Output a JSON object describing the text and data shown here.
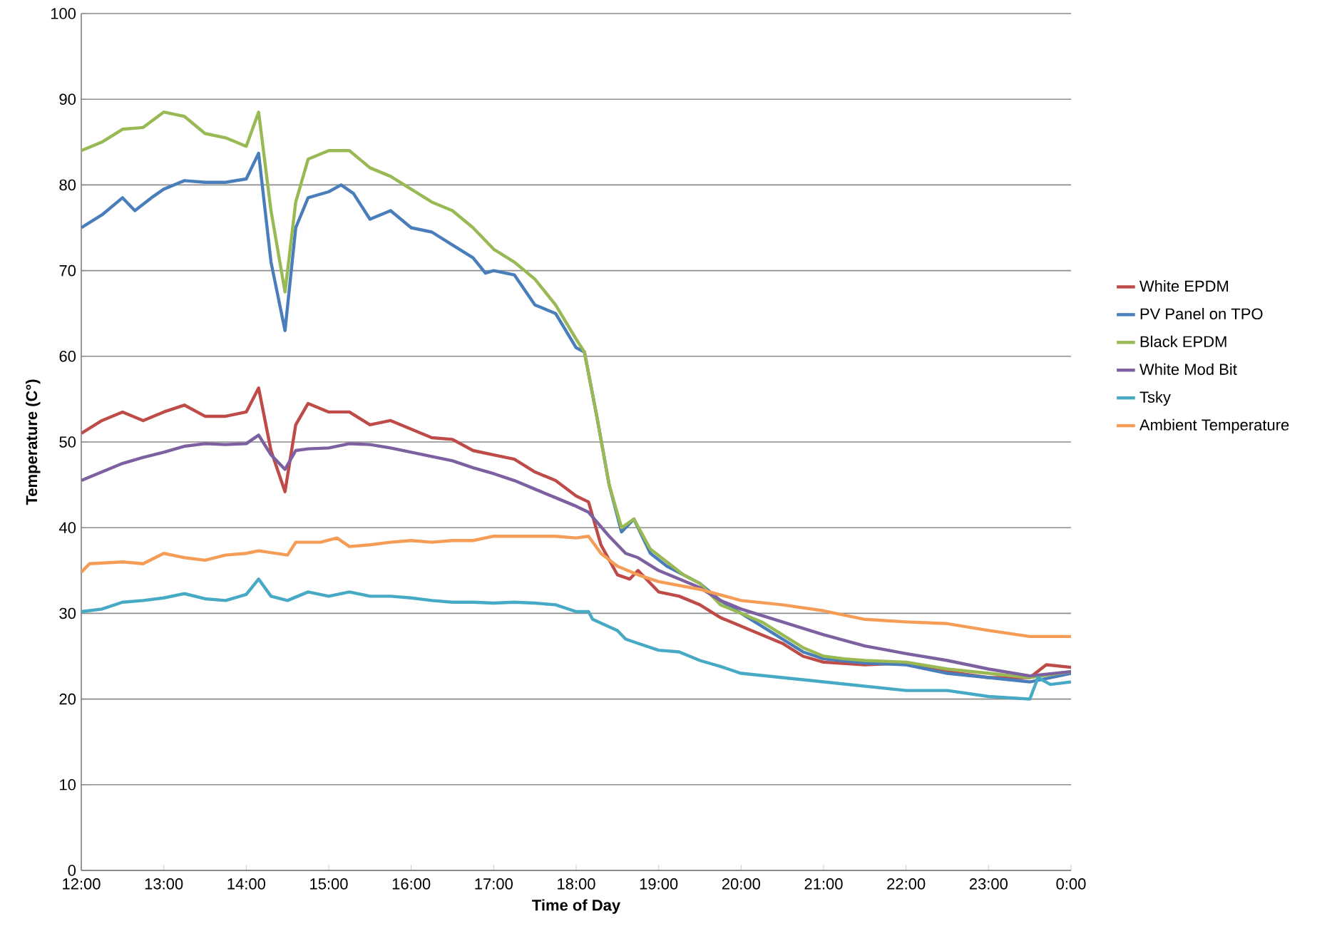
{
  "chart_data": {
    "type": "line",
    "xlabel": "Time of Day",
    "ylabel": "Temperature (C°)",
    "xlim": [
      12,
      24
    ],
    "ylim": [
      0,
      100
    ],
    "xticks": [
      {
        "value": 12,
        "label": "12:00"
      },
      {
        "value": 13,
        "label": "13:00"
      },
      {
        "value": 14,
        "label": "14:00"
      },
      {
        "value": 15,
        "label": "15:00"
      },
      {
        "value": 16,
        "label": "16:00"
      },
      {
        "value": 17,
        "label": "17:00"
      },
      {
        "value": 18,
        "label": "18:00"
      },
      {
        "value": 19,
        "label": "19:00"
      },
      {
        "value": 20,
        "label": "20:00"
      },
      {
        "value": 21,
        "label": "21:00"
      },
      {
        "value": 22,
        "label": "22:00"
      },
      {
        "value": 23,
        "label": "23:00"
      },
      {
        "value": 24,
        "label": "0:00"
      }
    ],
    "yticks": [
      0,
      10,
      20,
      30,
      40,
      50,
      60,
      70,
      80,
      90,
      100
    ],
    "grid": "y",
    "legend": "right",
    "marker": "none",
    "line_style": "solid",
    "series": [
      {
        "name": "White EPDM",
        "color": "#be4b48",
        "x": [
          12,
          12.25,
          12.5,
          12.75,
          13,
          13.25,
          13.5,
          13.75,
          14,
          14.15,
          14.3,
          14.47,
          14.6,
          14.75,
          15,
          15.25,
          15.5,
          15.75,
          16,
          16.25,
          16.5,
          16.75,
          17,
          17.25,
          17.5,
          17.75,
          18,
          18.15,
          18.3,
          18.5,
          18.65,
          18.75,
          19,
          19.25,
          19.5,
          19.75,
          20,
          20.25,
          20.5,
          20.75,
          21,
          21.5,
          22,
          22.5,
          23,
          23.5,
          23.7,
          24
        ],
        "values": [
          51,
          52.5,
          53.5,
          52.5,
          53.5,
          54.3,
          53,
          53,
          53.5,
          56.3,
          49,
          44.2,
          52,
          54.5,
          53.5,
          53.5,
          52,
          52.5,
          51.5,
          50.5,
          50.3,
          49,
          48.5,
          48,
          46.5,
          45.5,
          43.7,
          43,
          38,
          34.5,
          34,
          35,
          32.5,
          32,
          31,
          29.5,
          28.5,
          27.5,
          26.5,
          25,
          24.3,
          24,
          24.2,
          23.2,
          22.5,
          22.5,
          24,
          23.7
        ]
      },
      {
        "name": "PV Panel on TPO",
        "color": "#4a7ebb",
        "x": [
          12,
          12.25,
          12.5,
          12.65,
          12.85,
          13,
          13.25,
          13.5,
          13.75,
          14,
          14.15,
          14.3,
          14.47,
          14.6,
          14.75,
          15,
          15.15,
          15.3,
          15.5,
          15.75,
          16,
          16.25,
          16.5,
          16.75,
          16.9,
          17,
          17.25,
          17.5,
          17.75,
          18,
          18.1,
          18.25,
          18.4,
          18.55,
          18.7,
          18.9,
          19.1,
          19.3,
          19.5,
          19.75,
          20,
          20.25,
          20.5,
          20.75,
          21,
          21.5,
          22,
          22.5,
          23,
          23.5,
          24
        ],
        "values": [
          75,
          76.5,
          78.5,
          77,
          78.5,
          79.5,
          80.5,
          80.3,
          80.3,
          80.7,
          83.7,
          71,
          63,
          75,
          78.5,
          79.2,
          80,
          79,
          76,
          77,
          75,
          74.5,
          73,
          71.5,
          69.7,
          70,
          69.5,
          66,
          65,
          61,
          60.5,
          53,
          45,
          39.5,
          41,
          37,
          35.5,
          34.5,
          33.5,
          31.5,
          30,
          28.5,
          27,
          25.5,
          24.7,
          24.2,
          24,
          23,
          22.5,
          22,
          23
        ]
      },
      {
        "name": "Black EPDM",
        "color": "#98b954",
        "x": [
          12,
          12.25,
          12.5,
          12.75,
          13,
          13.25,
          13.5,
          13.75,
          14,
          14.15,
          14.3,
          14.47,
          14.6,
          14.75,
          15,
          15.25,
          15.5,
          15.75,
          16,
          16.25,
          16.5,
          16.75,
          17,
          17.25,
          17.5,
          17.75,
          18,
          18.1,
          18.25,
          18.4,
          18.55,
          18.7,
          18.9,
          19.1,
          19.3,
          19.5,
          19.75,
          20,
          20.25,
          20.5,
          20.75,
          21,
          21.25,
          21.5,
          22,
          22.5,
          23,
          23.5,
          24
        ],
        "values": [
          84,
          85,
          86.5,
          86.7,
          88.5,
          88,
          86,
          85.5,
          84.5,
          88.5,
          77,
          67.5,
          78,
          83,
          84,
          84,
          82,
          81,
          79.5,
          78,
          77,
          75,
          72.5,
          71,
          69,
          66,
          62,
          60.5,
          53,
          45,
          40,
          41,
          37.5,
          36,
          34.5,
          33.5,
          31,
          30,
          29,
          27.5,
          26,
          25,
          24.7,
          24.5,
          24.3,
          23.5,
          23,
          22.5,
          23.2
        ]
      },
      {
        "name": "White Mod Bit",
        "color": "#7d60a0",
        "x": [
          12,
          12.25,
          12.5,
          12.75,
          13,
          13.25,
          13.5,
          13.75,
          14,
          14.15,
          14.3,
          14.47,
          14.6,
          14.75,
          15,
          15.25,
          15.5,
          15.75,
          16,
          16.25,
          16.5,
          16.75,
          17,
          17.25,
          17.5,
          17.75,
          18,
          18.15,
          18.4,
          18.6,
          18.75,
          19,
          19.25,
          19.5,
          19.75,
          20,
          20.5,
          21,
          21.5,
          22,
          22.5,
          23,
          23.5,
          24
        ],
        "values": [
          45.5,
          46.5,
          47.5,
          48.2,
          48.8,
          49.5,
          49.8,
          49.7,
          49.8,
          50.8,
          48.5,
          46.8,
          49,
          49.2,
          49.3,
          49.8,
          49.7,
          49.3,
          48.8,
          48.3,
          47.8,
          47,
          46.3,
          45.5,
          44.5,
          43.5,
          42.5,
          41.8,
          39,
          37,
          36.5,
          35,
          34,
          33,
          31.5,
          30.5,
          29,
          27.5,
          26.2,
          25.3,
          24.5,
          23.5,
          22.7,
          23.2
        ]
      },
      {
        "name": "Tsky",
        "color": "#46aac5",
        "x": [
          12,
          12.25,
          12.5,
          12.75,
          13,
          13.25,
          13.5,
          13.75,
          14,
          14.15,
          14.3,
          14.5,
          14.75,
          15,
          15.25,
          15.5,
          15.75,
          16,
          16.25,
          16.5,
          16.75,
          17,
          17.25,
          17.5,
          17.75,
          18,
          18.15,
          18.2,
          18.5,
          18.6,
          18.75,
          19,
          19.25,
          19.5,
          19.75,
          20,
          20.5,
          21,
          21.5,
          22,
          22.5,
          23,
          23.5,
          23.6,
          23.75,
          24
        ],
        "values": [
          30.2,
          30.5,
          31.3,
          31.5,
          31.8,
          32.3,
          31.7,
          31.5,
          32.2,
          34,
          32,
          31.5,
          32.5,
          32,
          32.5,
          32,
          32,
          31.8,
          31.5,
          31.3,
          31.3,
          31.2,
          31.3,
          31.2,
          31,
          30.2,
          30.2,
          29.3,
          28,
          27,
          26.5,
          25.7,
          25.5,
          24.5,
          23.8,
          23,
          22.5,
          22,
          21.5,
          21,
          21,
          20.3,
          20,
          22.5,
          21.7,
          22
        ]
      },
      {
        "name": "Ambient Temperature",
        "color": "#f59d56",
        "x": [
          12,
          12.1,
          12.5,
          12.75,
          13,
          13.25,
          13.5,
          13.75,
          14,
          14.15,
          14.5,
          14.6,
          14.9,
          15.1,
          15.25,
          15.5,
          15.75,
          16,
          16.25,
          16.5,
          16.75,
          17,
          17.25,
          17.5,
          17.75,
          18,
          18.15,
          18.3,
          18.5,
          18.75,
          19,
          19.5,
          20,
          20.5,
          21,
          21.5,
          22,
          22.5,
          23,
          23.5,
          23.75,
          24
        ],
        "values": [
          34.8,
          35.8,
          36,
          35.8,
          37,
          36.5,
          36.2,
          36.8,
          37,
          37.3,
          36.8,
          38.3,
          38.3,
          38.8,
          37.8,
          38,
          38.3,
          38.5,
          38.3,
          38.5,
          38.5,
          39,
          39,
          39,
          39,
          38.8,
          39,
          37,
          35.5,
          34.5,
          33.7,
          32.8,
          31.5,
          31,
          30.3,
          29.3,
          29,
          28.8,
          28,
          27.3,
          27.3,
          27.3
        ]
      }
    ]
  }
}
